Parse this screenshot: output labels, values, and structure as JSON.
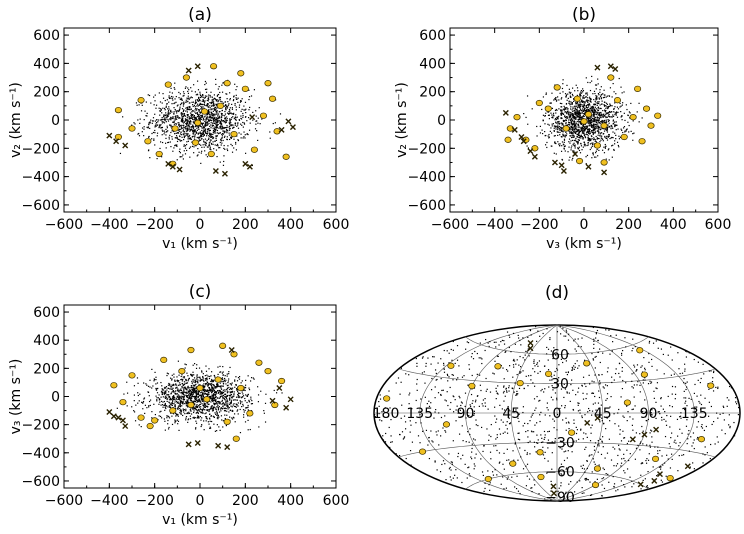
{
  "colors": {
    "highlight": "#f0c020",
    "highlight_edge": "#3a2e00",
    "cross": "#2a2200",
    "dot": "#000000"
  },
  "chart_data": [
    {
      "type": "scatter",
      "title": "(a)",
      "xlabel": "v₁ (km s⁻¹)",
      "ylabel": "v₂ (km s⁻¹)",
      "xlim": [
        -600,
        600
      ],
      "ylim": [
        -650,
        650
      ],
      "xticks": [
        "−600",
        "−400",
        "−200",
        "0",
        "200",
        "400",
        "600"
      ],
      "yticks": [
        "−600",
        "−400",
        "−200",
        "0",
        "200",
        "400",
        "600"
      ],
      "xtick_values": [
        -600,
        -400,
        -200,
        0,
        200,
        400,
        600
      ],
      "ytick_values": [
        -600,
        -400,
        -200,
        0,
        200,
        400,
        600
      ],
      "background_dots": {
        "count": 1500,
        "sigma_x": 110,
        "sigma_y": 110,
        "extent_x": 370,
        "extent_y": 320
      },
      "series": [
        {
          "marker": "circle",
          "points": [
            [
              -360,
              70
            ],
            [
              -300,
              -60
            ],
            [
              -260,
              140
            ],
            [
              -230,
              -150
            ],
            [
              -180,
              -240
            ],
            [
              -140,
              250
            ],
            [
              -110,
              -60
            ],
            [
              -60,
              300
            ],
            [
              -20,
              -160
            ],
            [
              -10,
              -20
            ],
            [
              20,
              60
            ],
            [
              50,
              -240
            ],
            [
              90,
              100
            ],
            [
              120,
              260
            ],
            [
              150,
              -100
            ],
            [
              200,
              220
            ],
            [
              240,
              -210
            ],
            [
              280,
              30
            ],
            [
              320,
              150
            ],
            [
              340,
              -80
            ],
            [
              380,
              -260
            ],
            [
              60,
              380
            ],
            [
              -120,
              -310
            ],
            [
              180,
              330
            ],
            [
              300,
              260
            ],
            [
              -360,
              -120
            ]
          ]
        },
        {
          "marker": "cross",
          "points": [
            [
              -400,
              -110
            ],
            [
              -370,
              -150
            ],
            [
              -330,
              -180
            ],
            [
              -140,
              -310
            ],
            [
              -120,
              -330
            ],
            [
              -90,
              -350
            ],
            [
              -50,
              350
            ],
            [
              -10,
              380
            ],
            [
              70,
              -360
            ],
            [
              110,
              -380
            ],
            [
              200,
              -310
            ],
            [
              220,
              -330
            ],
            [
              360,
              -70
            ],
            [
              390,
              -10
            ],
            [
              410,
              -50
            ],
            [
              230,
              20
            ]
          ]
        }
      ]
    },
    {
      "type": "scatter",
      "title": "(b)",
      "xlabel": "v₃ (km s⁻¹)",
      "ylabel": "v₂ (km s⁻¹)",
      "xlim": [
        -600,
        600
      ],
      "ylim": [
        -650,
        650
      ],
      "xticks": [
        "−600",
        "−400",
        "−200",
        "0",
        "200",
        "400",
        "600"
      ],
      "yticks": [
        "−600",
        "−400",
        "−200",
        "0",
        "200",
        "400",
        "600"
      ],
      "xtick_values": [
        -600,
        -400,
        -200,
        0,
        200,
        400,
        600
      ],
      "ytick_values": [
        -600,
        -400,
        -200,
        0,
        200,
        400,
        600
      ],
      "background_dots": {
        "count": 1500,
        "sigma_x": 85,
        "sigma_y": 105,
        "extent_x": 280,
        "extent_y": 320
      },
      "series": [
        {
          "marker": "circle",
          "points": [
            [
              -330,
              -60
            ],
            [
              -300,
              20
            ],
            [
              -260,
              -140
            ],
            [
              -220,
              -200
            ],
            [
              -200,
              120
            ],
            [
              -160,
              80
            ],
            [
              -120,
              230
            ],
            [
              -80,
              -60
            ],
            [
              -30,
              150
            ],
            [
              0,
              -10
            ],
            [
              20,
              40
            ],
            [
              60,
              -180
            ],
            [
              90,
              -40
            ],
            [
              120,
              300
            ],
            [
              150,
              140
            ],
            [
              180,
              -120
            ],
            [
              220,
              20
            ],
            [
              240,
              220
            ],
            [
              260,
              -150
            ],
            [
              280,
              80
            ],
            [
              300,
              -40
            ],
            [
              330,
              30
            ],
            [
              -340,
              -140
            ],
            [
              90,
              -300
            ],
            [
              -20,
              -290
            ]
          ]
        },
        {
          "marker": "cross",
          "points": [
            [
              -350,
              50
            ],
            [
              -310,
              -70
            ],
            [
              -280,
              -120
            ],
            [
              -270,
              -150
            ],
            [
              -240,
              -220
            ],
            [
              -220,
              -260
            ],
            [
              -130,
              -300
            ],
            [
              -100,
              -320
            ],
            [
              -90,
              -360
            ],
            [
              90,
              -370
            ],
            [
              120,
              380
            ],
            [
              140,
              360
            ],
            [
              60,
              370
            ],
            [
              -40,
              -240
            ],
            [
              20,
              -330
            ]
          ]
        }
      ]
    },
    {
      "type": "scatter",
      "title": "(c)",
      "xlabel": "v₁ (km s⁻¹)",
      "ylabel": "v₃ (km s⁻¹)",
      "xlim": [
        -600,
        600
      ],
      "ylim": [
        -650,
        650
      ],
      "xticks": [
        "−600",
        "−400",
        "−200",
        "0",
        "200",
        "400",
        "600"
      ],
      "yticks": [
        "−600",
        "−400",
        "−200",
        "0",
        "200",
        "400",
        "600"
      ],
      "xtick_values": [
        -600,
        -400,
        -200,
        0,
        200,
        400,
        600
      ],
      "ytick_values": [
        -600,
        -400,
        -200,
        0,
        200,
        400,
        600
      ],
      "background_dots": {
        "count": 1500,
        "sigma_x": 110,
        "sigma_y": 85,
        "extent_x": 370,
        "extent_y": 260
      },
      "series": [
        {
          "marker": "circle",
          "points": [
            [
              -380,
              80
            ],
            [
              -340,
              -40
            ],
            [
              -300,
              150
            ],
            [
              -260,
              -150
            ],
            [
              -220,
              -210
            ],
            [
              -160,
              260
            ],
            [
              -120,
              -100
            ],
            [
              -80,
              180
            ],
            [
              -40,
              -60
            ],
            [
              0,
              60
            ],
            [
              30,
              -20
            ],
            [
              80,
              120
            ],
            [
              120,
              -180
            ],
            [
              150,
              300
            ],
            [
              180,
              60
            ],
            [
              220,
              -120
            ],
            [
              260,
              240
            ],
            [
              300,
              180
            ],
            [
              330,
              -60
            ],
            [
              360,
              110
            ],
            [
              100,
              360
            ],
            [
              -200,
              -170
            ],
            [
              160,
              -300
            ],
            [
              -40,
              330
            ]
          ]
        },
        {
          "marker": "cross",
          "points": [
            [
              -400,
              -110
            ],
            [
              -380,
              -140
            ],
            [
              -360,
              -150
            ],
            [
              -340,
              -170
            ],
            [
              -330,
              -210
            ],
            [
              -50,
              -340
            ],
            [
              -10,
              -330
            ],
            [
              80,
              -350
            ],
            [
              120,
              -360
            ],
            [
              140,
              330
            ],
            [
              320,
              -30
            ],
            [
              350,
              60
            ],
            [
              380,
              -80
            ],
            [
              400,
              -20
            ]
          ]
        }
      ]
    },
    {
      "type": "scatter",
      "title": "(d)",
      "projection": "Aitoff",
      "meridian_labels": [
        "135",
        "90",
        "45",
        "0",
        "45",
        "90",
        "135",
        "180"
      ],
      "meridian_values": [
        -135,
        -90,
        -45,
        0,
        45,
        90,
        135,
        180
      ],
      "parallel_labels": [
        "60",
        "30",
        "−30",
        "−60",
        "−90"
      ],
      "parallel_values": [
        60,
        30,
        -30,
        -60,
        -90
      ],
      "background_dots": {
        "count": 1300
      },
      "series": [
        {
          "marker": "circle",
          "points": [
            [
              -160,
              20
            ],
            [
              -150,
              -20
            ],
            [
              -120,
              -40
            ],
            [
              -100,
              35
            ],
            [
              -70,
              10
            ],
            [
              -60,
              -55
            ],
            [
              -40,
              50
            ],
            [
              -15,
              -20
            ],
            [
              10,
              40
            ],
            [
              20,
              -40
            ],
            [
              40,
              30
            ],
            [
              60,
              -50
            ],
            [
              75,
              45
            ],
            [
              90,
              25
            ],
            [
              110,
              -10
            ],
            [
              130,
              40
            ],
            [
              150,
              -30
            ],
            [
              170,
              10
            ],
            [
              -130,
              55
            ],
            [
              30,
              -65
            ],
            [
              -90,
              -70
            ],
            [
              120,
              -60
            ],
            [
              -170,
              -50
            ]
          ]
        },
        {
          "marker": "cross",
          "points": [
            [
              -165,
              -40
            ],
            [
              -160,
              -55
            ],
            [
              -155,
              -60
            ],
            [
              -150,
              -50
            ],
            [
              -100,
              -15
            ],
            [
              -90,
              -20
            ],
            [
              -80,
              -25
            ],
            [
              -40,
              -5
            ],
            [
              -30,
              -10
            ],
            [
              10,
              -75
            ],
            [
              15,
              -82
            ],
            [
              50,
              65
            ],
            [
              60,
              70
            ]
          ]
        }
      ]
    }
  ]
}
